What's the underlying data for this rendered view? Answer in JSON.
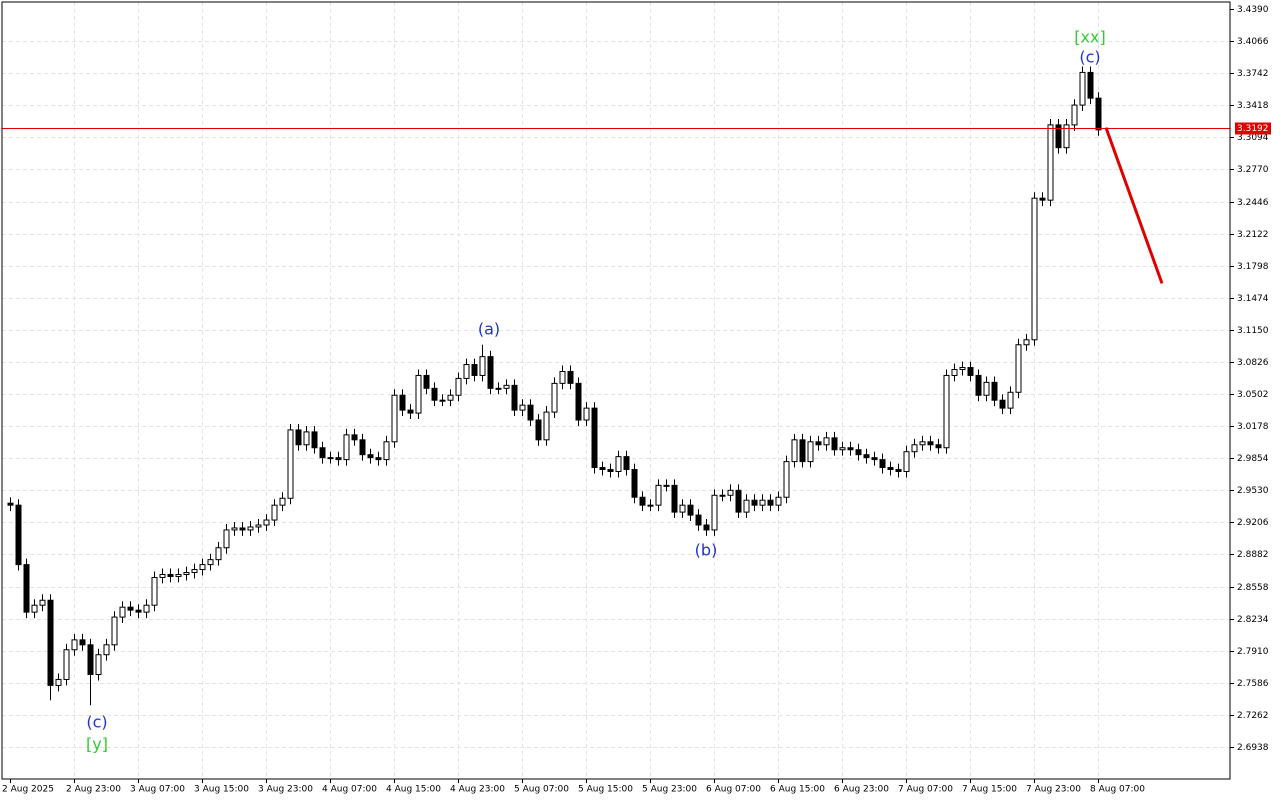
{
  "chart_data": {
    "type": "candlestick",
    "categories": [
      "2 Aug 2025",
      null,
      null,
      null,
      null,
      null,
      null,
      null,
      "2 Aug 23:00",
      null,
      null,
      null,
      null,
      null,
      null,
      null,
      "3 Aug 07:00",
      null,
      null,
      null,
      null,
      null,
      null,
      null,
      "3 Aug 15:00",
      null,
      null,
      null,
      null,
      null,
      null,
      null,
      "3 Aug 23:00",
      null,
      null,
      null,
      null,
      null,
      null,
      null,
      "4 Aug 07:00",
      null,
      null,
      null,
      null,
      null,
      null,
      null,
      "4 Aug 15:00",
      null,
      null,
      null,
      null,
      null,
      null,
      null,
      "4 Aug 23:00",
      null,
      null,
      null,
      null,
      null,
      null,
      null,
      "5 Aug 07:00",
      null,
      null,
      null,
      null,
      null,
      null,
      null,
      "5 Aug 15:00",
      null,
      null,
      null,
      null,
      null,
      null,
      null,
      "5 Aug 23:00",
      null,
      null,
      null,
      null,
      null,
      null,
      null,
      "6 Aug 07:00",
      null,
      null,
      null,
      null,
      null,
      null,
      null,
      "6 Aug 15:00",
      null,
      null,
      null,
      null,
      null,
      null,
      null,
      "6 Aug 23:00",
      null,
      null,
      null,
      null,
      null,
      null,
      null,
      "7 Aug 07:00",
      null,
      null,
      null,
      null,
      null,
      null,
      null,
      "7 Aug 15:00",
      null,
      null,
      null,
      null,
      null,
      null,
      null,
      "7 Aug 23:00",
      null,
      null,
      null,
      null,
      null,
      null,
      null,
      "8 Aug 07:00"
    ],
    "open": [
      2.94,
      2.938,
      2.878,
      2.83,
      2.837,
      2.842,
      2.756,
      2.762,
      2.792,
      2.802,
      2.797,
      2.767,
      2.787,
      2.797,
      2.825,
      2.835,
      2.832,
      2.83,
      2.837,
      2.865,
      2.868,
      2.866,
      2.868,
      2.87,
      2.873,
      2.878,
      2.883,
      2.895,
      2.913,
      2.915,
      2.913,
      2.916,
      2.918,
      2.923,
      2.938,
      2.945,
      3.014,
      2.999,
      3.012,
      2.996,
      2.986,
      2.986,
      2.984,
      3.009,
      3.004,
      2.989,
      2.986,
      2.984,
      3.002,
      3.049,
      3.034,
      3.031,
      3.069,
      3.056,
      3.044,
      3.044,
      3.049,
      3.066,
      3.08,
      3.069,
      3.088,
      3.056,
      3.056,
      3.059,
      3.034,
      3.039,
      3.024,
      3.004,
      3.032,
      3.061,
      3.073,
      3.061,
      3.024,
      3.036,
      2.976,
      2.974,
      2.972,
      2.987,
      2.974,
      2.946,
      2.938,
      2.938,
      2.958,
      2.958,
      2.931,
      2.938,
      2.928,
      2.918,
      2.913,
      2.948,
      2.948,
      2.953,
      2.931,
      2.943,
      2.938,
      2.943,
      2.938,
      2.946,
      2.982,
      3.004,
      2.982,
      3.002,
      2.999,
      3.006,
      2.994,
      2.996,
      2.994,
      2.989,
      2.986,
      2.984,
      2.976,
      2.974,
      2.972,
      2.992,
      2.999,
      3.002,
      2.999,
      2.996,
      3.069,
      3.075,
      3.077,
      3.069,
      3.049,
      3.062,
      3.044,
      3.036,
      3.052,
      3.1,
      3.105,
      3.248,
      3.246,
      3.322,
      3.299,
      3.322,
      3.342,
      3.375,
      3.349
    ],
    "high": [
      2.946,
      2.944,
      2.884,
      2.843,
      2.848,
      2.848,
      2.768,
      2.798,
      2.808,
      2.808,
      2.803,
      2.793,
      2.803,
      2.831,
      2.841,
      2.841,
      2.838,
      2.843,
      2.871,
      2.874,
      2.874,
      2.874,
      2.876,
      2.879,
      2.884,
      2.889,
      2.901,
      2.919,
      2.921,
      2.921,
      2.922,
      2.924,
      2.929,
      2.944,
      2.951,
      3.02,
      3.02,
      3.018,
      3.018,
      3.002,
      2.992,
      2.992,
      3.015,
      3.015,
      3.01,
      2.995,
      2.992,
      3.008,
      3.055,
      3.055,
      3.04,
      3.075,
      3.075,
      3.062,
      3.05,
      3.055,
      3.072,
      3.086,
      3.086,
      3.1,
      3.094,
      3.062,
      3.065,
      3.065,
      3.045,
      3.045,
      3.03,
      3.038,
      3.067,
      3.079,
      3.079,
      3.067,
      3.042,
      3.042,
      2.982,
      2.98,
      2.993,
      2.993,
      2.98,
      2.952,
      2.944,
      2.964,
      2.964,
      2.964,
      2.944,
      2.944,
      2.934,
      2.924,
      2.954,
      2.954,
      2.959,
      2.959,
      2.949,
      2.949,
      2.949,
      2.949,
      2.952,
      2.988,
      3.01,
      3.01,
      3.008,
      3.008,
      3.012,
      3.012,
      3.002,
      3.002,
      3.0,
      2.995,
      2.992,
      2.99,
      2.982,
      2.98,
      2.998,
      3.005,
      3.008,
      3.008,
      3.005,
      3.075,
      3.081,
      3.083,
      3.083,
      3.075,
      3.068,
      3.068,
      3.05,
      3.058,
      3.106,
      3.111,
      3.254,
      3.254,
      3.328,
      3.328,
      3.328,
      3.348,
      3.381,
      3.381,
      3.355
    ],
    "low": [
      2.932,
      2.872,
      2.824,
      2.824,
      2.831,
      2.741,
      2.75,
      2.756,
      2.786,
      2.791,
      2.736,
      2.761,
      2.781,
      2.791,
      2.819,
      2.826,
      2.824,
      2.824,
      2.831,
      2.859,
      2.86,
      2.86,
      2.862,
      2.864,
      2.867,
      2.872,
      2.877,
      2.889,
      2.907,
      2.907,
      2.907,
      2.91,
      2.912,
      2.917,
      2.932,
      2.939,
      2.993,
      2.993,
      2.99,
      2.98,
      2.98,
      2.978,
      2.978,
      2.998,
      2.983,
      2.98,
      2.978,
      2.978,
      2.996,
      3.028,
      3.025,
      3.025,
      3.05,
      3.038,
      3.038,
      3.038,
      3.043,
      3.06,
      3.063,
      3.063,
      3.05,
      3.05,
      3.05,
      3.028,
      3.028,
      3.018,
      2.998,
      2.998,
      3.026,
      3.055,
      3.055,
      3.018,
      3.018,
      2.97,
      2.968,
      2.966,
      2.966,
      2.968,
      2.94,
      2.932,
      2.932,
      2.932,
      2.952,
      2.925,
      2.925,
      2.922,
      2.912,
      2.907,
      2.907,
      2.942,
      2.942,
      2.925,
      2.925,
      2.932,
      2.932,
      2.932,
      2.932,
      2.94,
      2.976,
      2.976,
      2.976,
      2.993,
      2.993,
      2.988,
      2.988,
      2.988,
      2.983,
      2.98,
      2.978,
      2.97,
      2.968,
      2.966,
      2.966,
      2.986,
      2.993,
      2.993,
      2.99,
      2.99,
      3.063,
      3.069,
      3.063,
      3.043,
      3.043,
      3.038,
      3.03,
      3.03,
      3.046,
      3.094,
      3.099,
      3.24,
      3.24,
      3.293,
      3.293,
      3.316,
      3.336,
      3.343,
      3.311
    ],
    "close": [
      2.938,
      2.878,
      2.83,
      2.837,
      2.842,
      2.756,
      2.762,
      2.792,
      2.802,
      2.797,
      2.767,
      2.787,
      2.797,
      2.825,
      2.835,
      2.832,
      2.83,
      2.837,
      2.865,
      2.868,
      2.866,
      2.868,
      2.87,
      2.873,
      2.878,
      2.883,
      2.895,
      2.913,
      2.915,
      2.913,
      2.916,
      2.918,
      2.923,
      2.938,
      2.945,
      3.014,
      2.999,
      3.012,
      2.996,
      2.986,
      2.986,
      2.984,
      3.009,
      3.004,
      2.989,
      2.986,
      2.984,
      3.002,
      3.049,
      3.034,
      3.031,
      3.069,
      3.056,
      3.044,
      3.044,
      3.049,
      3.066,
      3.08,
      3.069,
      3.088,
      3.056,
      3.056,
      3.059,
      3.034,
      3.039,
      3.024,
      3.004,
      3.032,
      3.061,
      3.073,
      3.061,
      3.024,
      3.036,
      2.976,
      2.974,
      2.972,
      2.987,
      2.974,
      2.946,
      2.938,
      2.938,
      2.958,
      2.958,
      2.931,
      2.938,
      2.928,
      2.918,
      2.913,
      2.948,
      2.948,
      2.953,
      2.931,
      2.943,
      2.938,
      2.943,
      2.938,
      2.946,
      2.982,
      3.004,
      2.982,
      3.002,
      2.999,
      3.006,
      2.994,
      2.996,
      2.994,
      2.989,
      2.986,
      2.984,
      2.976,
      2.974,
      2.972,
      2.992,
      2.999,
      3.002,
      2.999,
      2.996,
      3.069,
      3.075,
      3.077,
      3.069,
      3.049,
      3.062,
      3.044,
      3.036,
      3.052,
      3.1,
      3.105,
      3.248,
      3.246,
      3.322,
      3.299,
      3.322,
      3.342,
      3.375,
      3.349,
      3.317
    ],
    "up_color": "#ffffff",
    "down_color": "#000000",
    "ylim": [
      2.6615,
      3.4461
    ],
    "yticks": [
      {
        "value": 3.439,
        "label": "3.4390"
      },
      3.4066,
      3.3742,
      3.3418,
      3.3094,
      {
        "value": 3.277,
        "label": "3.2770"
      },
      3.2446,
      3.2122,
      3.1798,
      3.1474,
      {
        "value": 3.115,
        "label": "3.1150"
      },
      3.0826,
      3.0502,
      3.0178,
      2.9854,
      {
        "value": 2.953,
        "label": "2.9530"
      },
      2.9206,
      2.8882,
      2.8558,
      2.8234,
      {
        "value": 2.791,
        "label": "2.7910"
      },
      2.7586,
      2.7262,
      2.6938
    ],
    "grid": true,
    "price_line": {
      "value": 3.3192,
      "color": "#e00000"
    },
    "forecast": {
      "values": [
        3.3192,
        3.162
      ],
      "color": "#e00000"
    },
    "annotations": [
      {
        "text": "(c)",
        "color": "#2233cc"
      },
      {
        "text": "[y]",
        "color": "#33cc33"
      },
      {
        "text": "(a)",
        "color": "#2233cc"
      },
      {
        "text": "(b)",
        "color": "#2233cc"
      },
      {
        "text": "(c)",
        "color": "#2233cc"
      },
      {
        "text": "[xx]",
        "color": "#33cc33"
      }
    ]
  }
}
